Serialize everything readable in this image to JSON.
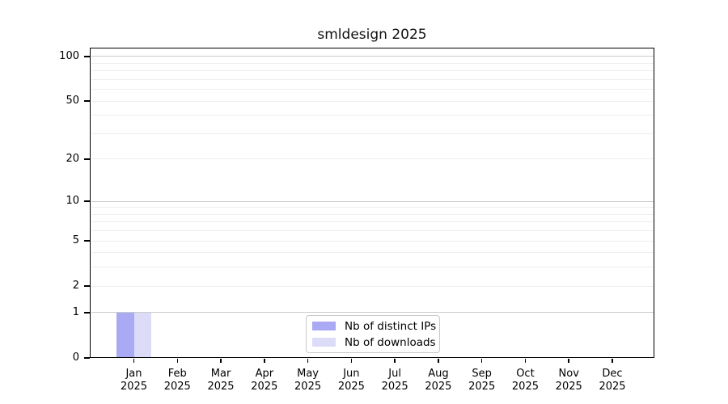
{
  "chart": {
    "title": "smldesign 2025"
  },
  "chart_data": {
    "type": "bar",
    "title": "smldesign 2025",
    "categories": [
      {
        "month": "Jan",
        "year": "2025"
      },
      {
        "month": "Feb",
        "year": "2025"
      },
      {
        "month": "Mar",
        "year": "2025"
      },
      {
        "month": "Apr",
        "year": "2025"
      },
      {
        "month": "May",
        "year": "2025"
      },
      {
        "month": "Jun",
        "year": "2025"
      },
      {
        "month": "Jul",
        "year": "2025"
      },
      {
        "month": "Aug",
        "year": "2025"
      },
      {
        "month": "Sep",
        "year": "2025"
      },
      {
        "month": "Oct",
        "year": "2025"
      },
      {
        "month": "Nov",
        "year": "2025"
      },
      {
        "month": "Dec",
        "year": "2025"
      }
    ],
    "series": [
      {
        "name": "Nb of distinct IPs",
        "color": "#a9a9f4",
        "values": [
          1,
          0,
          0,
          0,
          0,
          0,
          0,
          0,
          0,
          0,
          0,
          0
        ]
      },
      {
        "name": "Nb of downloads",
        "color": "#dcdcf9",
        "values": [
          1,
          0,
          0,
          0,
          0,
          0,
          0,
          0,
          0,
          0,
          0,
          0
        ]
      }
    ],
    "xlabel": "",
    "ylabel": "",
    "yscale": "log1p",
    "ylim": [
      0,
      112
    ],
    "yticks": [
      0,
      1,
      2,
      5,
      10,
      20,
      50,
      100
    ],
    "major_gridlines": [
      1,
      10,
      100
    ],
    "minor_gridlines": [
      2,
      3,
      4,
      5,
      6,
      7,
      8,
      9,
      20,
      30,
      40,
      50,
      60,
      70,
      80,
      90
    ],
    "grid": "horizontal",
    "legend_position": "lower center",
    "colors": {
      "grid_major": "#cbcbcb",
      "grid_minor": "#eeeeee",
      "axis": "#000000",
      "background": "#ffffff"
    }
  }
}
